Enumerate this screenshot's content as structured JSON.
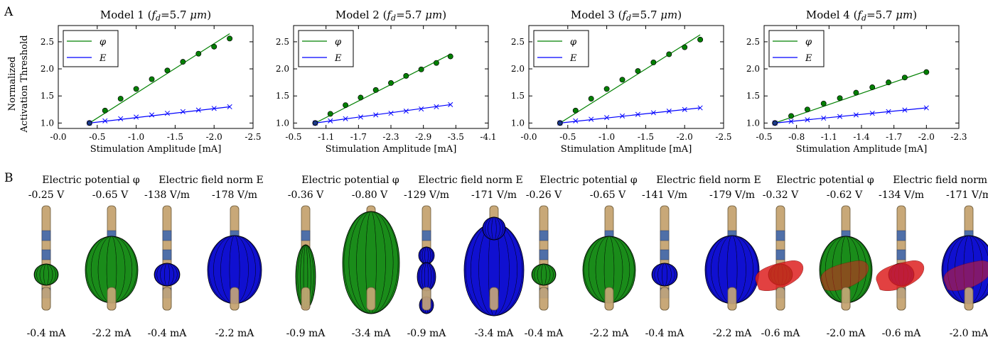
{
  "panel_labels": [
    "A",
    "B"
  ],
  "chart_data": [
    {
      "type": "line",
      "title": "Model 1 (f_d=5.7 μm)",
      "xlabel": "Stimulation Amplitude [mA]",
      "ylabel": "Normalized Activation Threshold",
      "xlim": [
        0.0,
        -2.5
      ],
      "ylim": [
        0.9,
        2.8
      ],
      "xticks": [
        "-0.0",
        "-0.5",
        "-1.0",
        "-1.5",
        "-2.0",
        "-2.5"
      ],
      "xtick_values": [
        0.0,
        -0.5,
        -1.0,
        -1.5,
        -2.0,
        -2.5
      ],
      "yticks": [
        "1.0",
        "1.5",
        "2.0",
        "2.5"
      ],
      "ytick_values": [
        1.0,
        1.5,
        2.0,
        2.5
      ],
      "legend_position": "top-left",
      "series": [
        {
          "name": "φ",
          "color": "#008000",
          "marker": "circle",
          "fit": [
            [
              -0.4,
              1.0
            ],
            [
              -2.2,
              2.65
            ]
          ],
          "x": [
            -0.4,
            -0.6,
            -0.8,
            -1.0,
            -1.2,
            -1.4,
            -1.6,
            -1.8,
            -2.0,
            -2.2
          ],
          "y": [
            1.0,
            1.23,
            1.45,
            1.63,
            1.81,
            1.97,
            2.13,
            2.28,
            2.41,
            2.56
          ]
        },
        {
          "name": "E",
          "color": "#0000ff",
          "marker": "x",
          "fit": [
            [
              -0.4,
              1.0
            ],
            [
              -2.2,
              1.3
            ]
          ],
          "x": [
            -0.4,
            -0.6,
            -0.8,
            -1.0,
            -1.2,
            -1.4,
            -1.6,
            -1.8,
            -2.0,
            -2.2
          ],
          "y": [
            1.0,
            1.04,
            1.08,
            1.11,
            1.15,
            1.18,
            1.21,
            1.24,
            1.27,
            1.3
          ]
        }
      ]
    },
    {
      "type": "line",
      "title": "Model 2 (f_d=5.7 μm)",
      "xlabel": "Stimulation Amplitude [mA]",
      "ylabel": "",
      "xlim": [
        -0.5,
        -4.1
      ],
      "ylim": [
        0.9,
        2.8
      ],
      "xticks": [
        "-0.5",
        "-1.1",
        "-1.7",
        "-2.3",
        "-2.9",
        "-3.5",
        "-4.1"
      ],
      "xtick_values": [
        -0.5,
        -1.1,
        -1.7,
        -2.3,
        -2.9,
        -3.5,
        -4.1
      ],
      "yticks": [
        "1.0",
        "1.5",
        "2.0",
        "2.5"
      ],
      "ytick_values": [
        1.0,
        1.5,
        2.0,
        2.5
      ],
      "legend_position": "top-left",
      "series": [
        {
          "name": "φ",
          "color": "#008000",
          "marker": "circle",
          "fit": [
            [
              -0.9,
              1.0
            ],
            [
              -3.4,
              2.27
            ]
          ],
          "x": [
            -0.9,
            -1.18,
            -1.46,
            -1.74,
            -2.02,
            -2.3,
            -2.58,
            -2.86,
            -3.14,
            -3.4
          ],
          "y": [
            1.0,
            1.17,
            1.33,
            1.47,
            1.61,
            1.74,
            1.87,
            1.99,
            2.11,
            2.23
          ]
        },
        {
          "name": "E",
          "color": "#0000ff",
          "marker": "x",
          "fit": [
            [
              -0.9,
              1.0
            ],
            [
              -3.4,
              1.34
            ]
          ],
          "x": [
            -0.9,
            -1.18,
            -1.46,
            -1.74,
            -2.02,
            -2.3,
            -2.58,
            -2.86,
            -3.14,
            -3.4
          ],
          "y": [
            1.0,
            1.04,
            1.08,
            1.11,
            1.15,
            1.18,
            1.22,
            1.26,
            1.3,
            1.34
          ]
        }
      ]
    },
    {
      "type": "line",
      "title": "Model 3 (f_d=5.7 μm)",
      "xlabel": "Stimulation Amplitude [mA]",
      "ylabel": "",
      "xlim": [
        0.0,
        -2.5
      ],
      "ylim": [
        0.9,
        2.8
      ],
      "xticks": [
        "-0.0",
        "-0.5",
        "-1.0",
        "-1.5",
        "-2.0",
        "-2.5"
      ],
      "xtick_values": [
        0.0,
        -0.5,
        -1.0,
        -1.5,
        -2.0,
        -2.5
      ],
      "yticks": [
        "1.0",
        "1.5",
        "2.0",
        "2.5"
      ],
      "ytick_values": [
        1.0,
        1.5,
        2.0,
        2.5
      ],
      "legend_position": "top-left",
      "series": [
        {
          "name": "φ",
          "color": "#008000",
          "marker": "circle",
          "fit": [
            [
              -0.4,
              1.0
            ],
            [
              -2.2,
              2.63
            ]
          ],
          "x": [
            -0.4,
            -0.6,
            -0.8,
            -1.0,
            -1.2,
            -1.4,
            -1.6,
            -1.8,
            -2.0,
            -2.2
          ],
          "y": [
            1.0,
            1.23,
            1.45,
            1.63,
            1.8,
            1.96,
            2.12,
            2.27,
            2.4,
            2.54
          ]
        },
        {
          "name": "E",
          "color": "#0000ff",
          "marker": "x",
          "fit": [
            [
              -0.4,
              1.0
            ],
            [
              -2.2,
              1.28
            ]
          ],
          "x": [
            -0.4,
            -0.6,
            -0.8,
            -1.0,
            -1.2,
            -1.4,
            -1.6,
            -1.8,
            -2.0,
            -2.2
          ],
          "y": [
            1.0,
            1.04,
            1.07,
            1.1,
            1.13,
            1.16,
            1.19,
            1.22,
            1.25,
            1.28
          ]
        }
      ]
    },
    {
      "type": "line",
      "title": "Model 4 (f_d=5.7 μm)",
      "xlabel": "Stimulation Amplitude [mA]",
      "ylabel": "",
      "xlim": [
        -0.5,
        -2.3
      ],
      "ylim": [
        0.9,
        2.8
      ],
      "xticks": [
        "-0.5",
        "-0.8",
        "-1.1",
        "-1.4",
        "-1.7",
        "-2.0",
        "-2.3"
      ],
      "xtick_values": [
        -0.5,
        -0.8,
        -1.1,
        -1.4,
        -1.7,
        -2.0,
        -2.3
      ],
      "yticks": [
        "1.0",
        "1.5",
        "2.0",
        "2.5"
      ],
      "ytick_values": [
        1.0,
        1.5,
        2.0,
        2.5
      ],
      "legend_position": "top-left",
      "series": [
        {
          "name": "φ",
          "color": "#008000",
          "marker": "circle",
          "fit": [
            [
              -0.6,
              1.0
            ],
            [
              -2.0,
              1.96
            ]
          ],
          "x": [
            -0.6,
            -0.75,
            -0.9,
            -1.05,
            -1.2,
            -1.35,
            -1.5,
            -1.65,
            -1.8,
            -2.0
          ],
          "y": [
            1.0,
            1.13,
            1.25,
            1.36,
            1.46,
            1.56,
            1.66,
            1.75,
            1.84,
            1.94
          ]
        },
        {
          "name": "E",
          "color": "#0000ff",
          "marker": "x",
          "fit": [
            [
              -0.6,
              1.0
            ],
            [
              -2.0,
              1.28
            ]
          ],
          "x": [
            -0.6,
            -0.75,
            -0.9,
            -1.05,
            -1.2,
            -1.35,
            -1.5,
            -1.65,
            -1.8,
            -2.0
          ],
          "y": [
            1.0,
            1.03,
            1.06,
            1.09,
            1.12,
            1.15,
            1.18,
            1.21,
            1.24,
            1.28
          ]
        }
      ]
    }
  ],
  "panel_b": {
    "header_phi": "Electric potential φ",
    "header_E": "Electric field norm E",
    "models": [
      {
        "name": "Model 1",
        "phi_values": [
          "-0.25 V",
          "-0.65 V"
        ],
        "E_values": [
          "-138 V/m",
          "-178 V/m"
        ],
        "amplitudes": [
          "-0.4 mA",
          "-2.2 mA",
          "-0.4 mA",
          "-2.2 mA"
        ]
      },
      {
        "name": "Model 2",
        "phi_values": [
          "-0.36 V",
          "-0.80 V"
        ],
        "E_values": [
          "-129 V/m",
          "-171 V/m"
        ],
        "amplitudes": [
          "-0.9 mA",
          "-3.4 mA",
          "-0.9 mA",
          "-3.4 mA"
        ]
      },
      {
        "name": "Model 3",
        "phi_values": [
          "-0.26 V",
          "-0.65 V"
        ],
        "E_values": [
          "-141 V/m",
          "-179 V/m"
        ],
        "amplitudes": [
          "-0.4 mA",
          "-2.2 mA",
          "-0.4 mA",
          "-2.2 mA"
        ]
      },
      {
        "name": "Model 4",
        "phi_values": [
          "-0.32 V",
          "-0.62 V"
        ],
        "E_values": [
          "-134 V/m",
          "-171 V/m"
        ],
        "amplitudes": [
          "-0.6 mA",
          "-2.0 mA",
          "-0.6 mA",
          "-2.0 mA"
        ]
      }
    ],
    "colors": {
      "phi": "#1a8c1a",
      "E": "#1010d0",
      "lead": "#c8a878",
      "contact": "#4f6fa8",
      "region": "#dd2020"
    }
  }
}
